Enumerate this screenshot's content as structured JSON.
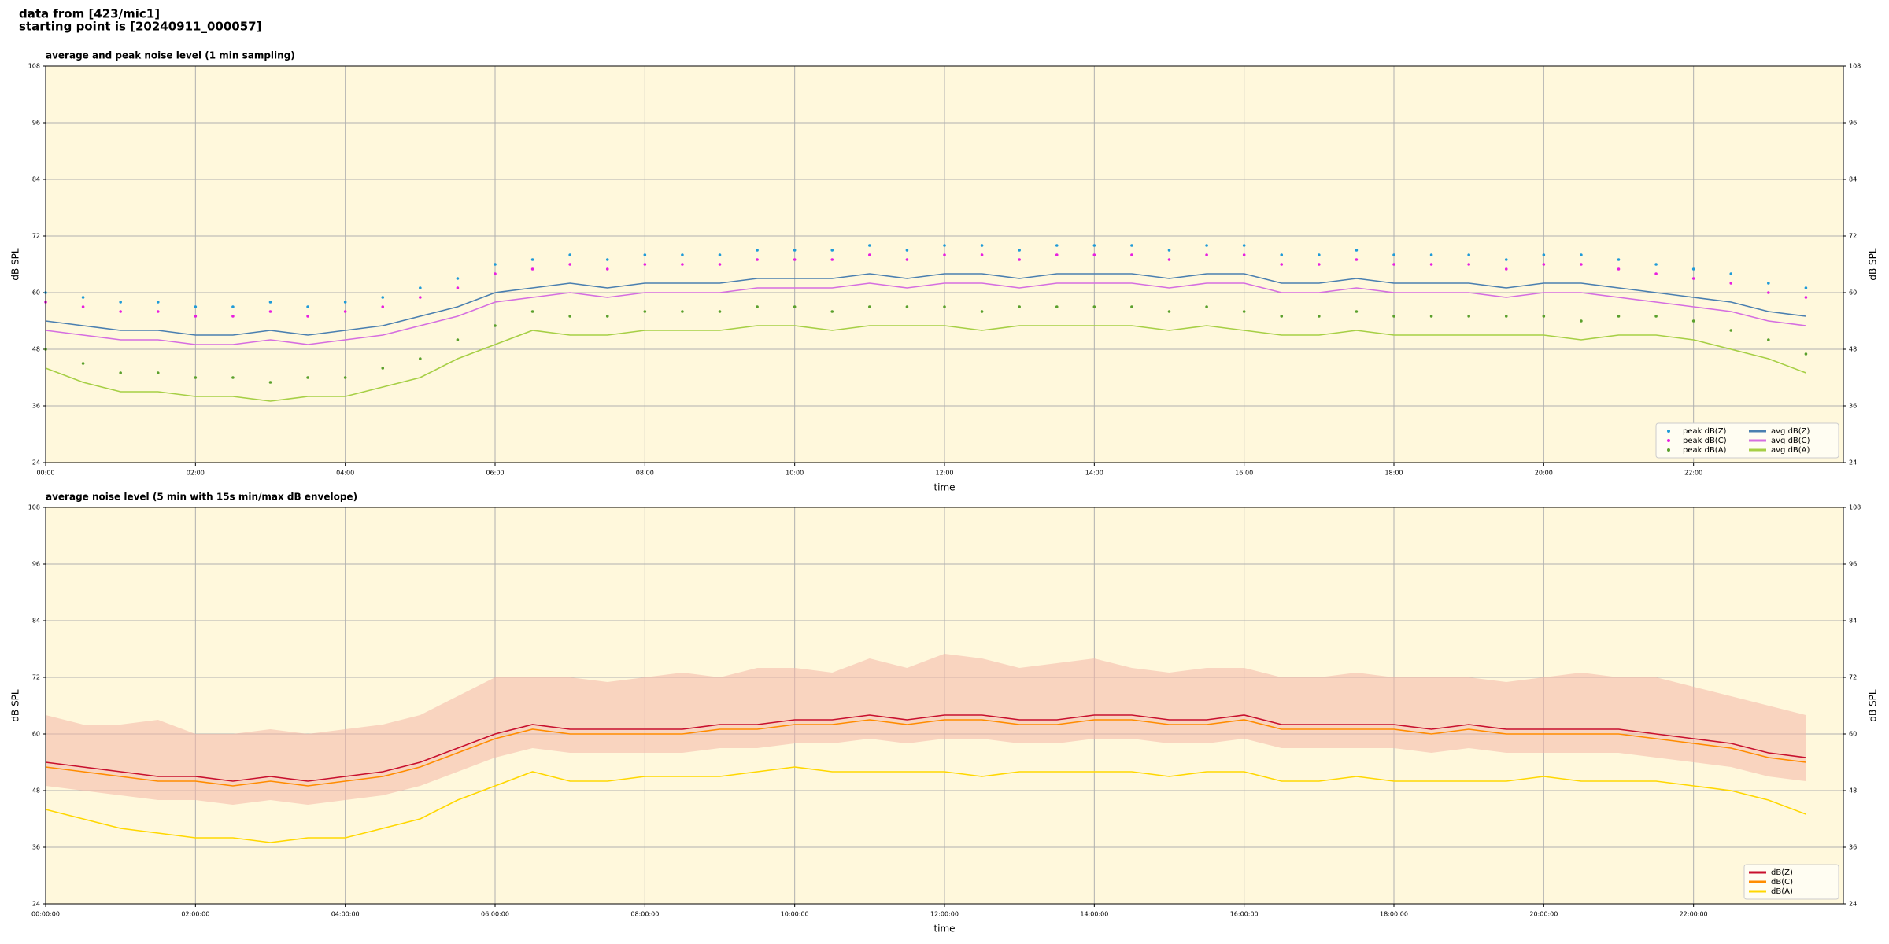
{
  "header": {
    "lines": [
      "data from [423/mic1]",
      "starting point is [20240911_000057]"
    ]
  },
  "chart_data": [
    {
      "type": "line",
      "title": "average and peak noise level (1 min sampling)",
      "xlabel": "time",
      "ylabel": "dB SPL",
      "x": [
        0,
        30,
        60,
        90,
        120,
        150,
        180,
        210,
        240,
        270,
        300,
        330,
        360,
        390,
        420,
        450,
        480,
        510,
        540,
        570,
        600,
        630,
        660,
        690,
        720,
        750,
        780,
        810,
        840,
        870,
        900,
        930,
        960,
        990,
        1020,
        1050,
        1080,
        1110,
        1140,
        1170,
        1200,
        1230,
        1260,
        1290,
        1320,
        1350,
        1380,
        1410
      ],
      "xlim": [
        0,
        1440
      ],
      "xticks": [
        {
          "value": 0,
          "label": "00:00"
        },
        {
          "value": 120,
          "label": "02:00"
        },
        {
          "value": 240,
          "label": "04:00"
        },
        {
          "value": 360,
          "label": "06:00"
        },
        {
          "value": 480,
          "label": "08:00"
        },
        {
          "value": 600,
          "label": "10:00"
        },
        {
          "value": 720,
          "label": "12:00"
        },
        {
          "value": 840,
          "label": "14:00"
        },
        {
          "value": 960,
          "label": "16:00"
        },
        {
          "value": 1080,
          "label": "18:00"
        },
        {
          "value": 1200,
          "label": "20:00"
        },
        {
          "value": 1320,
          "label": "22:00"
        }
      ],
      "ylim": [
        24,
        108
      ],
      "yticks": [
        24,
        36,
        48,
        60,
        72,
        84,
        96,
        108
      ],
      "grid": true,
      "legend": "lower right",
      "legend_columns": 2,
      "series": [
        {
          "name": "peak dB(Z)",
          "kind": "scatter",
          "color": "#1f9bd8",
          "values": [
            60,
            59,
            58,
            58,
            57,
            57,
            58,
            57,
            58,
            59,
            61,
            63,
            66,
            67,
            68,
            67,
            68,
            68,
            68,
            69,
            69,
            69,
            70,
            69,
            70,
            70,
            69,
            70,
            70,
            70,
            69,
            70,
            70,
            68,
            68,
            69,
            68,
            68,
            68,
            67,
            68,
            68,
            67,
            66,
            65,
            64,
            62,
            61
          ]
        },
        {
          "name": "peak dB(C)",
          "kind": "scatter",
          "color": "#e81ee0",
          "values": [
            58,
            57,
            56,
            56,
            55,
            55,
            56,
            55,
            56,
            57,
            59,
            61,
            64,
            65,
            66,
            65,
            66,
            66,
            66,
            67,
            67,
            67,
            68,
            67,
            68,
            68,
            67,
            68,
            68,
            68,
            67,
            68,
            68,
            66,
            66,
            67,
            66,
            66,
            66,
            65,
            66,
            66,
            65,
            64,
            63,
            62,
            60,
            59
          ]
        },
        {
          "name": "peak dB(A)",
          "kind": "scatter",
          "color": "#5aa02c",
          "values": [
            48,
            45,
            43,
            43,
            42,
            42,
            41,
            42,
            42,
            44,
            46,
            50,
            53,
            56,
            55,
            55,
            56,
            56,
            56,
            57,
            57,
            56,
            57,
            57,
            57,
            56,
            57,
            57,
            57,
            57,
            56,
            57,
            56,
            55,
            55,
            56,
            55,
            55,
            55,
            55,
            55,
            54,
            55,
            55,
            54,
            52,
            50,
            47
          ]
        },
        {
          "name": "avg dB(Z)",
          "kind": "line",
          "color": "#4a7fb0",
          "values": [
            54,
            53,
            52,
            52,
            51,
            51,
            52,
            51,
            52,
            53,
            55,
            57,
            60,
            61,
            62,
            61,
            62,
            62,
            62,
            63,
            63,
            63,
            64,
            63,
            64,
            64,
            63,
            64,
            64,
            64,
            63,
            64,
            64,
            62,
            62,
            63,
            62,
            62,
            62,
            61,
            62,
            62,
            61,
            60,
            59,
            58,
            56,
            55
          ]
        },
        {
          "name": "avg dB(C)",
          "kind": "line",
          "color": "#d56ee0",
          "values": [
            52,
            51,
            50,
            50,
            49,
            49,
            50,
            49,
            50,
            51,
            53,
            55,
            58,
            59,
            60,
            59,
            60,
            60,
            60,
            61,
            61,
            61,
            62,
            61,
            62,
            62,
            61,
            62,
            62,
            62,
            61,
            62,
            62,
            60,
            60,
            61,
            60,
            60,
            60,
            59,
            60,
            60,
            59,
            58,
            57,
            56,
            54,
            53
          ]
        },
        {
          "name": "avg dB(A)",
          "kind": "line",
          "color": "#a6cf45",
          "values": [
            44,
            41,
            39,
            39,
            38,
            38,
            37,
            38,
            38,
            40,
            42,
            46,
            49,
            52,
            51,
            51,
            52,
            52,
            52,
            53,
            53,
            52,
            53,
            53,
            53,
            52,
            53,
            53,
            53,
            53,
            52,
            53,
            52,
            51,
            51,
            52,
            51,
            51,
            51,
            51,
            51,
            50,
            51,
            51,
            50,
            48,
            46,
            43
          ]
        }
      ]
    },
    {
      "type": "line",
      "title": "average noise level (5 min with 15s min/max dB envelope)",
      "xlabel": "time",
      "ylabel": "dB SPL",
      "x": [
        0,
        30,
        60,
        90,
        120,
        150,
        180,
        210,
        240,
        270,
        300,
        330,
        360,
        390,
        420,
        450,
        480,
        510,
        540,
        570,
        600,
        630,
        660,
        690,
        720,
        750,
        780,
        810,
        840,
        870,
        900,
        930,
        960,
        990,
        1020,
        1050,
        1080,
        1110,
        1140,
        1170,
        1200,
        1230,
        1260,
        1290,
        1320,
        1350,
        1380,
        1410
      ],
      "xlim": [
        0,
        1440
      ],
      "xticks": [
        {
          "value": 0,
          "label": "00:00:00"
        },
        {
          "value": 120,
          "label": "02:00:00"
        },
        {
          "value": 240,
          "label": "04:00:00"
        },
        {
          "value": 360,
          "label": "06:00:00"
        },
        {
          "value": 480,
          "label": "08:00:00"
        },
        {
          "value": 600,
          "label": "10:00:00"
        },
        {
          "value": 720,
          "label": "12:00:00"
        },
        {
          "value": 840,
          "label": "14:00:00"
        },
        {
          "value": 960,
          "label": "16:00:00"
        },
        {
          "value": 1080,
          "label": "18:00:00"
        },
        {
          "value": 1200,
          "label": "20:00:00"
        },
        {
          "value": 1320,
          "label": "22:00:00"
        }
      ],
      "ylim": [
        24,
        108
      ],
      "yticks": [
        24,
        36,
        48,
        60,
        72,
        84,
        96,
        108
      ],
      "grid": true,
      "legend": "lower right",
      "legend_columns": 1,
      "envelope": {
        "color": "#f4b6a8",
        "low": [
          49,
          48,
          47,
          46,
          46,
          45,
          46,
          45,
          46,
          47,
          49,
          52,
          55,
          57,
          56,
          56,
          56,
          56,
          57,
          57,
          58,
          58,
          59,
          58,
          59,
          59,
          58,
          58,
          59,
          59,
          58,
          58,
          59,
          57,
          57,
          57,
          57,
          56,
          57,
          56,
          56,
          56,
          56,
          55,
          54,
          53,
          51,
          50
        ],
        "high": [
          64,
          62,
          62,
          63,
          60,
          60,
          61,
          60,
          61,
          62,
          64,
          68,
          72,
          72,
          72,
          71,
          72,
          73,
          72,
          74,
          74,
          73,
          76,
          74,
          77,
          76,
          74,
          75,
          76,
          74,
          73,
          74,
          74,
          72,
          72,
          73,
          72,
          72,
          72,
          71,
          72,
          73,
          72,
          72,
          70,
          68,
          66,
          64
        ]
      },
      "series": [
        {
          "name": "dB(Z)",
          "kind": "line",
          "color": "#c8102e",
          "values": [
            54,
            53,
            52,
            51,
            51,
            50,
            51,
            50,
            51,
            52,
            54,
            57,
            60,
            62,
            61,
            61,
            61,
            61,
            62,
            62,
            63,
            63,
            64,
            63,
            64,
            64,
            63,
            63,
            64,
            64,
            63,
            63,
            64,
            62,
            62,
            62,
            62,
            61,
            62,
            61,
            61,
            61,
            61,
            60,
            59,
            58,
            56,
            55
          ]
        },
        {
          "name": "dB(C)",
          "kind": "line",
          "color": "#ff8c00",
          "values": [
            53,
            52,
            51,
            50,
            50,
            49,
            50,
            49,
            50,
            51,
            53,
            56,
            59,
            61,
            60,
            60,
            60,
            60,
            61,
            61,
            62,
            62,
            63,
            62,
            63,
            63,
            62,
            62,
            63,
            63,
            62,
            62,
            63,
            61,
            61,
            61,
            61,
            60,
            61,
            60,
            60,
            60,
            60,
            59,
            58,
            57,
            55,
            54
          ]
        },
        {
          "name": "dB(A)",
          "kind": "line",
          "color": "#ffd700",
          "values": [
            44,
            42,
            40,
            39,
            38,
            38,
            37,
            38,
            38,
            40,
            42,
            46,
            49,
            52,
            50,
            50,
            51,
            51,
            51,
            52,
            53,
            52,
            52,
            52,
            52,
            51,
            52,
            52,
            52,
            52,
            51,
            52,
            52,
            50,
            50,
            51,
            50,
            50,
            50,
            50,
            51,
            50,
            50,
            50,
            49,
            48,
            46,
            43
          ]
        }
      ]
    }
  ]
}
